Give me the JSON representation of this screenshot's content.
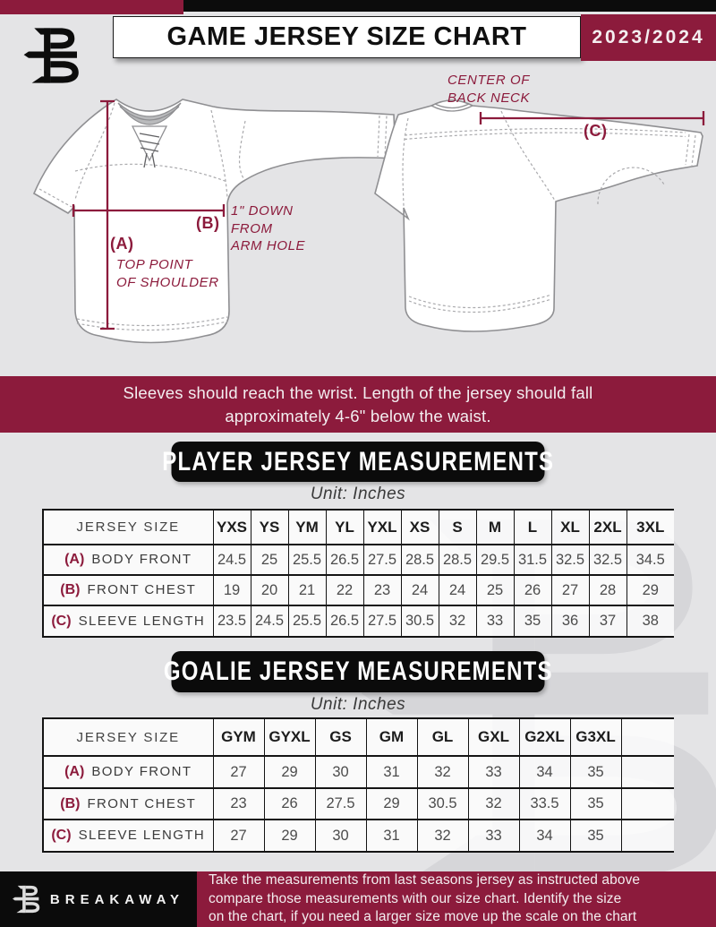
{
  "header": {
    "title": "GAME JERSEY SIZE CHART",
    "season": "2023/2024"
  },
  "diagram": {
    "front": {
      "label_a": "(A)",
      "a_note_line1": "TOP POINT",
      "a_note_line2": "OF SHOULDER",
      "label_b": "(B)",
      "b_note_line1": "1\" DOWN",
      "b_note_line2": "FROM",
      "b_note_line3": "ARM HOLE"
    },
    "back": {
      "neck_note_line1": "CENTER OF",
      "neck_note_line2": "BACK NECK",
      "label_c": "(C)"
    }
  },
  "notice_banner": {
    "line1": "Sleeves should reach the wrist. Length of the jersey should fall",
    "line2": "approximately 4-6\" below the waist."
  },
  "player_section": {
    "title": "PLAYER JERSEY MEASUREMENTS",
    "unit": "Unit: Inches",
    "table": {
      "corner_label": "JERSEY SIZE",
      "columns": [
        "YXS",
        "YS",
        "YM",
        "YL",
        "YXL",
        "XS",
        "S",
        "M",
        "L",
        "XL",
        "2XL",
        "3XL"
      ],
      "rows": [
        {
          "key": "(A)",
          "label": "BODY FRONT",
          "values": [
            "24.5",
            "25",
            "25.5",
            "26.5",
            "27.5",
            "28.5",
            "28.5",
            "29.5",
            "31.5",
            "32.5",
            "32.5",
            "34.5"
          ]
        },
        {
          "key": "(B)",
          "label": "FRONT CHEST",
          "values": [
            "19",
            "20",
            "21",
            "22",
            "23",
            "24",
            "24",
            "25",
            "26",
            "27",
            "28",
            "29"
          ]
        },
        {
          "key": "(C)",
          "label": "SLEEVE LENGTH",
          "values": [
            "23.5",
            "24.5",
            "25.5",
            "26.5",
            "27.5",
            "30.5",
            "32",
            "33",
            "35",
            "36",
            "37",
            "38"
          ]
        }
      ]
    }
  },
  "goalie_section": {
    "title": "GOALIE JERSEY MEASUREMENTS",
    "unit": "Unit: Inches",
    "table": {
      "corner_label": "JERSEY SIZE",
      "columns": [
        "GYM",
        "GYXL",
        "GS",
        "GM",
        "GL",
        "GXL",
        "G2XL",
        "G3XL",
        ""
      ],
      "rows": [
        {
          "key": "(A)",
          "label": "BODY FRONT",
          "values": [
            "27",
            "29",
            "30",
            "31",
            "32",
            "33",
            "34",
            "35",
            ""
          ]
        },
        {
          "key": "(B)",
          "label": "FRONT CHEST",
          "values": [
            "23",
            "26",
            "27.5",
            "29",
            "30.5",
            "32",
            "33.5",
            "35",
            ""
          ]
        },
        {
          "key": "(C)",
          "label": "SLEEVE LENGTH",
          "values": [
            "27",
            "29",
            "30",
            "31",
            "32",
            "33",
            "34",
            "35",
            ""
          ]
        }
      ]
    }
  },
  "footer": {
    "brand": "BREAKAWAY",
    "note_line1": "Take the measurements from last seasons jersey as instructed above",
    "note_line2": "compare those measurements  with our size chart. Identify the size",
    "note_line3": "on the chart, if you need a larger size move up the scale on the chart"
  },
  "colors": {
    "maroon": "#8c1b3c",
    "black": "#0b0b0b",
    "background": "#e4e4e6"
  }
}
